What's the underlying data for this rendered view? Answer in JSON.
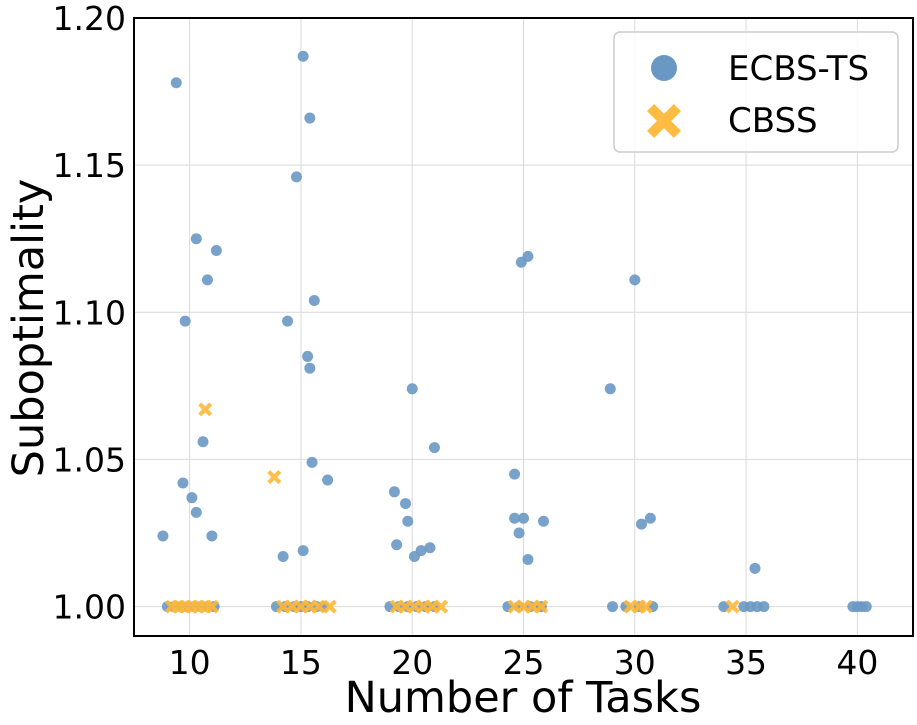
{
  "chart_data": {
    "type": "scatter",
    "title": "",
    "xlabel": "Number of Tasks",
    "ylabel": "Suboptimality",
    "xlim": [
      7.5,
      42.5
    ],
    "ylim": [
      0.99,
      1.2
    ],
    "x_ticks": [
      10,
      15,
      20,
      25,
      30,
      35,
      40
    ],
    "x_tick_labels": [
      "10",
      "15",
      "20",
      "25",
      "30",
      "35",
      "40"
    ],
    "y_ticks": [
      1.0,
      1.05,
      1.1,
      1.15,
      1.2
    ],
    "y_tick_labels": [
      "1.00",
      "1.05",
      "1.10",
      "1.15",
      "1.20"
    ],
    "grid": true,
    "legend": {
      "position": "top-right",
      "entries": [
        "ECBS-TS",
        "CBSS"
      ]
    },
    "colors": {
      "ECBS-TS": "#6a98c4",
      "CBSS": "#ffb838",
      "grid": "#d9d9d9"
    },
    "series": [
      {
        "name": "ECBS-TS",
        "marker": "circle",
        "points": [
          [
            9.4,
            1.178
          ],
          [
            10.3,
            1.125
          ],
          [
            11.2,
            1.121
          ],
          [
            10.8,
            1.111
          ],
          [
            9.8,
            1.097
          ],
          [
            10.6,
            1.056
          ],
          [
            9.7,
            1.042
          ],
          [
            10.1,
            1.037
          ],
          [
            10.3,
            1.032
          ],
          [
            8.8,
            1.024
          ],
          [
            11.0,
            1.024
          ],
          [
            9.0,
            1.0
          ],
          [
            9.3,
            1.0
          ],
          [
            9.6,
            1.0
          ],
          [
            9.9,
            1.0
          ],
          [
            10.2,
            1.0
          ],
          [
            10.5,
            1.0
          ],
          [
            10.8,
            1.0
          ],
          [
            11.1,
            1.0
          ],
          [
            15.1,
            1.187
          ],
          [
            15.4,
            1.166
          ],
          [
            14.8,
            1.146
          ],
          [
            15.6,
            1.104
          ],
          [
            14.4,
            1.097
          ],
          [
            15.3,
            1.085
          ],
          [
            15.4,
            1.081
          ],
          [
            15.5,
            1.049
          ],
          [
            16.2,
            1.043
          ],
          [
            15.1,
            1.019
          ],
          [
            14.2,
            1.017
          ],
          [
            13.9,
            1.0
          ],
          [
            14.3,
            1.0
          ],
          [
            14.7,
            1.0
          ],
          [
            15.0,
            1.0
          ],
          [
            15.3,
            1.0
          ],
          [
            15.7,
            1.0
          ],
          [
            16.0,
            1.0
          ],
          [
            20.0,
            1.074
          ],
          [
            21.0,
            1.054
          ],
          [
            19.2,
            1.039
          ],
          [
            19.7,
            1.035
          ],
          [
            19.8,
            1.029
          ],
          [
            19.3,
            1.021
          ],
          [
            20.4,
            1.019
          ],
          [
            20.8,
            1.02
          ],
          [
            20.1,
            1.017
          ],
          [
            19.0,
            1.0
          ],
          [
            19.4,
            1.0
          ],
          [
            19.8,
            1.0
          ],
          [
            20.2,
            1.0
          ],
          [
            20.6,
            1.0
          ],
          [
            21.0,
            1.0
          ],
          [
            25.2,
            1.119
          ],
          [
            24.9,
            1.117
          ],
          [
            24.6,
            1.045
          ],
          [
            24.6,
            1.03
          ],
          [
            25.0,
            1.03
          ],
          [
            25.9,
            1.029
          ],
          [
            24.8,
            1.025
          ],
          [
            25.2,
            1.016
          ],
          [
            24.3,
            1.0
          ],
          [
            24.8,
            1.0
          ],
          [
            25.3,
            1.0
          ],
          [
            25.8,
            1.0
          ],
          [
            30.0,
            1.111
          ],
          [
            28.9,
            1.074
          ],
          [
            30.7,
            1.03
          ],
          [
            30.3,
            1.028
          ],
          [
            29.0,
            1.0
          ],
          [
            29.6,
            1.0
          ],
          [
            30.2,
            1.0
          ],
          [
            30.8,
            1.0
          ],
          [
            35.4,
            1.013
          ],
          [
            34.0,
            1.0
          ],
          [
            34.9,
            1.0
          ],
          [
            35.2,
            1.0
          ],
          [
            35.5,
            1.0
          ],
          [
            35.8,
            1.0
          ],
          [
            39.8,
            1.0
          ],
          [
            40.0,
            1.0
          ],
          [
            40.2,
            1.0
          ],
          [
            40.4,
            1.0
          ]
        ]
      },
      {
        "name": "CBSS",
        "marker": "x",
        "points": [
          [
            10.7,
            1.067
          ],
          [
            13.8,
            1.044
          ],
          [
            9.2,
            1.0
          ],
          [
            9.5,
            1.0
          ],
          [
            9.8,
            1.0
          ],
          [
            10.1,
            1.0
          ],
          [
            10.4,
            1.0
          ],
          [
            10.7,
            1.0
          ],
          [
            11.0,
            1.0
          ],
          [
            14.2,
            1.0
          ],
          [
            14.6,
            1.0
          ],
          [
            15.0,
            1.0
          ],
          [
            15.4,
            1.0
          ],
          [
            15.8,
            1.0
          ],
          [
            16.3,
            1.0
          ],
          [
            19.3,
            1.0
          ],
          [
            19.7,
            1.0
          ],
          [
            20.1,
            1.0
          ],
          [
            20.5,
            1.0
          ],
          [
            20.9,
            1.0
          ],
          [
            21.3,
            1.0
          ],
          [
            24.6,
            1.0
          ],
          [
            25.0,
            1.0
          ],
          [
            25.4,
            1.0
          ],
          [
            25.8,
            1.0
          ],
          [
            29.8,
            1.0
          ],
          [
            30.2,
            1.0
          ],
          [
            30.5,
            1.0
          ],
          [
            34.4,
            1.0
          ]
        ]
      }
    ]
  }
}
